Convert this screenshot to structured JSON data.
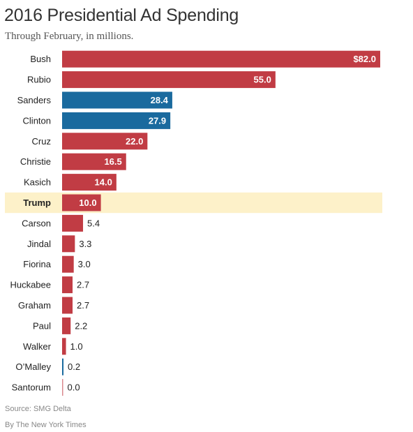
{
  "title": "2016 Presidential Ad Spending",
  "subtitle": "Through February, in millions.",
  "source": "Source: SMG Delta",
  "credit": "By The New York Times",
  "colors": {
    "republican": "#c13c44",
    "democrat": "#1a6a9e",
    "highlight_row": "#fdf1c9"
  },
  "chart_data": {
    "type": "bar",
    "orientation": "horizontal",
    "xlim": [
      0,
      82
    ],
    "highlight": "Trump",
    "categories": [
      "Bush",
      "Rubio",
      "Sanders",
      "Clinton",
      "Cruz",
      "Christie",
      "Kasich",
      "Trump",
      "Carson",
      "Jindal",
      "Fiorina",
      "Huckabee",
      "Graham",
      "Paul",
      "Walker",
      "O’Malley",
      "Santorum"
    ],
    "values": [
      82.0,
      55.0,
      28.4,
      27.9,
      22.0,
      16.5,
      14.0,
      10.0,
      5.4,
      3.3,
      3.0,
      2.7,
      2.7,
      2.2,
      1.0,
      0.2,
      0.0
    ],
    "value_labels": [
      "$82.0",
      "55.0",
      "28.4",
      "27.9",
      "22.0",
      "16.5",
      "14.0",
      "10.0",
      "5.4",
      "3.3",
      "3.0",
      "2.7",
      "2.7",
      "2.2",
      "1.0",
      "0.2",
      "0.0"
    ],
    "party": [
      "R",
      "R",
      "D",
      "D",
      "R",
      "R",
      "R",
      "R",
      "R",
      "R",
      "R",
      "R",
      "R",
      "R",
      "R",
      "D",
      "R"
    ]
  }
}
